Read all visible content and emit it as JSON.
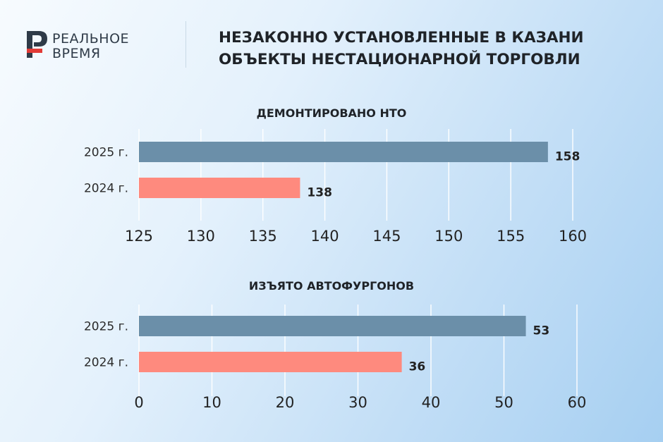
{
  "brand": {
    "line1": "РЕАЛЬНОЕ",
    "line2": "ВРЕМЯ"
  },
  "header": {
    "title_line1": "НЕЗАКОННО УСТАНОВЛЕННЫЕ В КАЗАНИ",
    "title_line2": "ОБЪЕКТЫ НЕСТАЦИОНАРНОЙ ТОРГОВЛИ"
  },
  "colors": {
    "series_2025": "#6b8fa9",
    "series_2024": "#fe8a7e",
    "logo_red": "#e23b36",
    "logo_dark": "#2f3b48"
  },
  "chart_data": [
    {
      "type": "bar",
      "orientation": "horizontal",
      "title": "ДЕМОНТИРОВАНО НТО",
      "categories": [
        "2025 г.",
        "2024 г."
      ],
      "values": [
        158,
        138
      ],
      "colors": [
        "#6b8fa9",
        "#fe8a7e"
      ],
      "xlim": [
        125,
        160
      ],
      "xticks": [
        125,
        130,
        135,
        140,
        145,
        150,
        155,
        160
      ],
      "grid": true
    },
    {
      "type": "bar",
      "orientation": "horizontal",
      "title": "ИЗЪЯТО АВТОФУРГОНОВ",
      "categories": [
        "2025 г.",
        "2024 г."
      ],
      "values": [
        53,
        36
      ],
      "colors": [
        "#6b8fa9",
        "#fe8a7e"
      ],
      "xlim": [
        0,
        60
      ],
      "xticks": [
        0,
        10,
        20,
        30,
        40,
        50,
        60
      ],
      "grid": true
    }
  ]
}
